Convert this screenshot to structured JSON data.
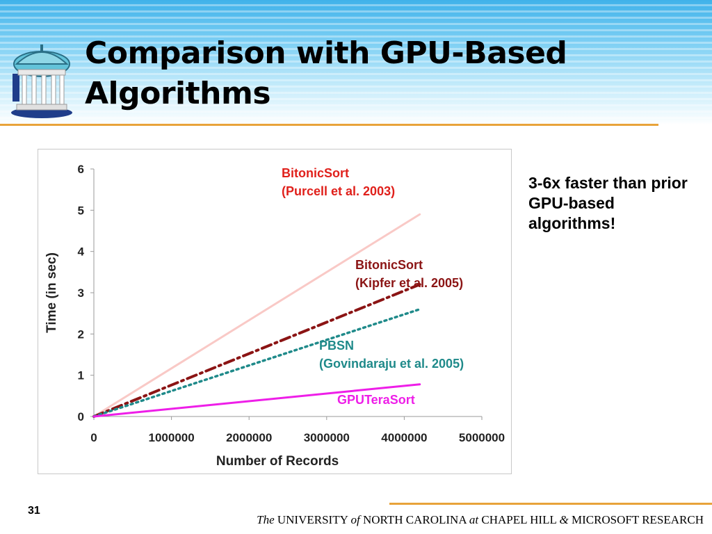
{
  "slide": {
    "title": "Comparison with GPU-Based\nAlgorithms",
    "callout": "3-6x faster than prior GPU-based algorithms!",
    "page_number": "31",
    "footer": {
      "the": "The",
      "university": "UNIVERSITY",
      "of": "of",
      "north_carolina": "NORTH CAROLINA",
      "at": "at",
      "chapel_hill": "CHAPEL HILL",
      "amp": "&",
      "microsoft": "MICROSOFT RESEARCH"
    },
    "logo_icon": "old-well-icon"
  },
  "chart_data": {
    "type": "line",
    "xlabel": "Number of Records",
    "ylabel": "Time (in sec)",
    "xlim": [
      0,
      5000000
    ],
    "ylim": [
      0,
      6
    ],
    "x_ticks": [
      "0",
      "1000000",
      "2000000",
      "3000000",
      "4000000",
      "5000000"
    ],
    "y_ticks": [
      "0",
      "1",
      "2",
      "3",
      "4",
      "5",
      "6"
    ],
    "grid": false,
    "series": [
      {
        "name": "BitonicSort (Purcell et al. 2003)",
        "label_lines": [
          "BitonicSort",
          "(Purcell et al. 2003)"
        ],
        "color": "#f9c9c6",
        "style": "solid",
        "x": [
          0,
          4200000
        ],
        "y": [
          0,
          4.9
        ]
      },
      {
        "name": "BitonicSort (Kipfer et al. 2005)",
        "label_lines": [
          "BitonicSort",
          "(Kipfer et al. 2005)"
        ],
        "color": "#8b1414",
        "style": "dashdot",
        "x": [
          0,
          4200000
        ],
        "y": [
          0,
          3.2
        ]
      },
      {
        "name": "PBSN (Govindaraju et al. 2005)",
        "label_lines": [
          "PBSN",
          "(Govindaraju et al. 2005)"
        ],
        "color": "#1f8a8a",
        "style": "dotted",
        "x": [
          0,
          4200000
        ],
        "y": [
          0,
          2.6
        ]
      },
      {
        "name": "GPUTeraSort",
        "label_lines": [
          "GPUTeraSort"
        ],
        "color": "#ee1ee8",
        "style": "solid",
        "x": [
          0,
          4200000
        ],
        "y": [
          0,
          0.78
        ]
      }
    ],
    "label_colors": [
      "#e0201b",
      "#8b1414",
      "#1f8a8a",
      "#ee1ee8"
    ]
  }
}
